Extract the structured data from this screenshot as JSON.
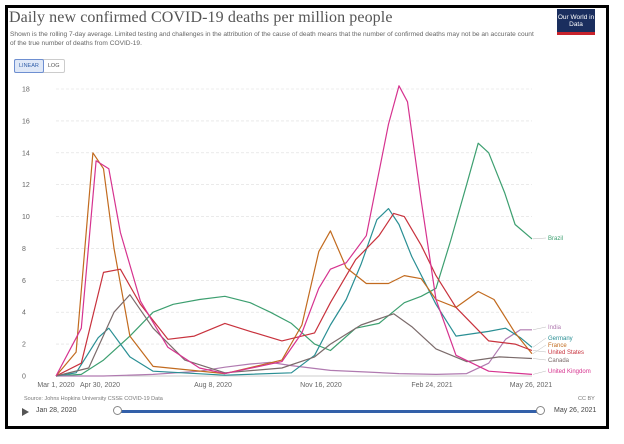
{
  "title": "Daily new confirmed COVID-19 deaths per million people",
  "subtitle": "Shown is the rolling 7-day average. Limited testing and challenges in the attribution of the cause of death means that the number of confirmed deaths may not be an accurate count of the true number of deaths from COVID-19.",
  "logo_text": "Our World in Data",
  "scale_toggle": {
    "linear": "LINEAR",
    "log": "LOG",
    "selected": "LINEAR"
  },
  "source": "Source: Johns Hopkins University CSSE COVID-19 Data",
  "license": "CC BY",
  "timeline": {
    "start_label": "Jan 28, 2020",
    "end_label": "May 26, 2021"
  },
  "colors": {
    "Brazil": "#3d9f70",
    "India": "#b07ab0",
    "Germany": "#2a8f94",
    "France": "#c26b1f",
    "United States": "#c8323d",
    "Canada": "#7b6b6b",
    "United Kingdom": "#d6338f"
  },
  "chart_data": {
    "type": "line",
    "xlabel": "",
    "ylabel": "",
    "ylim": [
      0,
      18
    ],
    "yticks": [
      "0",
      "2",
      "4",
      "6",
      "8",
      "10",
      "12",
      "14",
      "16",
      "18"
    ],
    "xticks": [
      "Mar 1, 2020",
      "Apr 30, 2020",
      "Aug 8, 2020",
      "Nov 16, 2020",
      "Feb 24, 2021",
      "May 26, 2021"
    ],
    "grid": true,
    "legend": "right (end-of-line labels)",
    "series": [
      {
        "name": "Brazil",
        "x": [
          "2020-03-01",
          "2020-03-25",
          "2020-04-15",
          "2020-05-10",
          "2020-06-01",
          "2020-06-20",
          "2020-07-15",
          "2020-08-08",
          "2020-09-01",
          "2020-09-20",
          "2020-10-10",
          "2020-11-01",
          "2020-11-16",
          "2020-12-10",
          "2021-01-01",
          "2021-01-25",
          "2021-02-10",
          "2021-02-24",
          "2021-03-10",
          "2021-03-25",
          "2021-04-05",
          "2021-04-15",
          "2021-04-30",
          "2021-05-10",
          "2021-05-26"
        ],
        "y": [
          0,
          0.1,
          1,
          2.5,
          4,
          4.5,
          4.8,
          5,
          4.6,
          4,
          3.3,
          2,
          1.6,
          3,
          3.3,
          4.6,
          5,
          5.5,
          8.5,
          12,
          14.6,
          14,
          11.5,
          9.5,
          8.6
        ]
      },
      {
        "name": "India",
        "x": [
          "2020-03-01",
          "2020-04-15",
          "2020-06-01",
          "2020-07-15",
          "2020-08-08",
          "2020-09-01",
          "2020-09-20",
          "2020-10-10",
          "2020-11-16",
          "2020-12-20",
          "2021-01-20",
          "2021-02-24",
          "2021-03-25",
          "2021-04-15",
          "2021-05-01",
          "2021-05-15",
          "2021-05-26"
        ],
        "y": [
          0,
          0,
          0.1,
          0.3,
          0.55,
          0.75,
          0.85,
          0.65,
          0.35,
          0.25,
          0.15,
          0.1,
          0.15,
          0.8,
          2.3,
          2.9,
          2.9
        ]
      },
      {
        "name": "Germany",
        "x": [
          "2020-03-01",
          "2020-03-20",
          "2020-04-10",
          "2020-04-20",
          "2020-05-10",
          "2020-06-01",
          "2020-08-08",
          "2020-10-10",
          "2020-11-01",
          "2020-11-16",
          "2020-12-01",
          "2020-12-15",
          "2020-12-30",
          "2021-01-10",
          "2021-01-20",
          "2021-02-01",
          "2021-02-24",
          "2021-03-15",
          "2021-04-15",
          "2021-05-01",
          "2021-05-15",
          "2021-05-26"
        ],
        "y": [
          0,
          0.2,
          2.4,
          3,
          1.2,
          0.3,
          0.05,
          0.2,
          1.3,
          3.2,
          4.8,
          7,
          9.8,
          10.5,
          9.5,
          7.5,
          4.5,
          2.5,
          2.8,
          3,
          2.4,
          1.8
        ]
      },
      {
        "name": "France",
        "x": [
          "2020-03-01",
          "2020-03-20",
          "2020-04-05",
          "2020-04-15",
          "2020-04-25",
          "2020-05-10",
          "2020-06-01",
          "2020-08-08",
          "2020-10-01",
          "2020-10-20",
          "2020-11-05",
          "2020-11-16",
          "2020-12-01",
          "2020-12-20",
          "2021-01-10",
          "2021-01-25",
          "2021-02-10",
          "2021-02-24",
          "2021-03-15",
          "2021-04-05",
          "2021-04-20",
          "2021-05-10",
          "2021-05-26"
        ],
        "y": [
          0,
          1.5,
          14,
          13,
          8,
          2.5,
          0.6,
          0.15,
          1,
          3.2,
          7.8,
          9.1,
          6.8,
          5.8,
          5.8,
          6.3,
          6.1,
          4.8,
          4.3,
          5.3,
          4.8,
          2.7,
          1.4
        ]
      },
      {
        "name": "United States",
        "x": [
          "2020-03-01",
          "2020-03-25",
          "2020-04-15",
          "2020-05-01",
          "2020-05-20",
          "2020-06-15",
          "2020-07-10",
          "2020-08-08",
          "2020-09-01",
          "2020-10-01",
          "2020-11-01",
          "2020-11-16",
          "2020-12-10",
          "2021-01-01",
          "2021-01-15",
          "2021-01-25",
          "2021-02-10",
          "2021-02-24",
          "2021-03-15",
          "2021-04-15",
          "2021-05-10",
          "2021-05-26"
        ],
        "y": [
          0,
          0.8,
          6.5,
          6.7,
          4.5,
          2.3,
          2.5,
          3.3,
          2.8,
          2.2,
          2.7,
          4.6,
          7.3,
          8.8,
          10.2,
          10,
          8.2,
          6.3,
          4.3,
          2.2,
          2,
          1.6
        ]
      },
      {
        "name": "Canada",
        "x": [
          "2020-03-01",
          "2020-04-01",
          "2020-04-25",
          "2020-05-10",
          "2020-06-01",
          "2020-07-01",
          "2020-08-08",
          "2020-10-01",
          "2020-11-01",
          "2020-11-16",
          "2020-12-15",
          "2021-01-15",
          "2021-02-01",
          "2021-02-24",
          "2021-03-25",
          "2021-04-25",
          "2021-05-26"
        ],
        "y": [
          0,
          0.5,
          4,
          5.1,
          3,
          1,
          0.2,
          0.5,
          1.2,
          2,
          3.2,
          3.9,
          3.1,
          1.7,
          0.9,
          1.2,
          1.1
        ]
      },
      {
        "name": "United Kingdom",
        "x": [
          "2020-03-01",
          "2020-03-25",
          "2020-04-08",
          "2020-04-20",
          "2020-05-01",
          "2020-05-20",
          "2020-06-15",
          "2020-07-15",
          "2020-08-08",
          "2020-10-01",
          "2020-10-20",
          "2020-11-05",
          "2020-11-16",
          "2020-12-01",
          "2020-12-20",
          "2021-01-10",
          "2021-01-20",
          "2021-01-28",
          "2021-02-10",
          "2021-02-24",
          "2021-03-15",
          "2021-04-15",
          "2021-05-26"
        ],
        "y": [
          0,
          3,
          13.5,
          13,
          9,
          4.7,
          1.8,
          0.5,
          0.15,
          0.9,
          2.7,
          5.5,
          6.7,
          7.1,
          8.8,
          15.8,
          18.2,
          17.2,
          11,
          4.8,
          1.3,
          0.3,
          0.1
        ]
      }
    ]
  }
}
